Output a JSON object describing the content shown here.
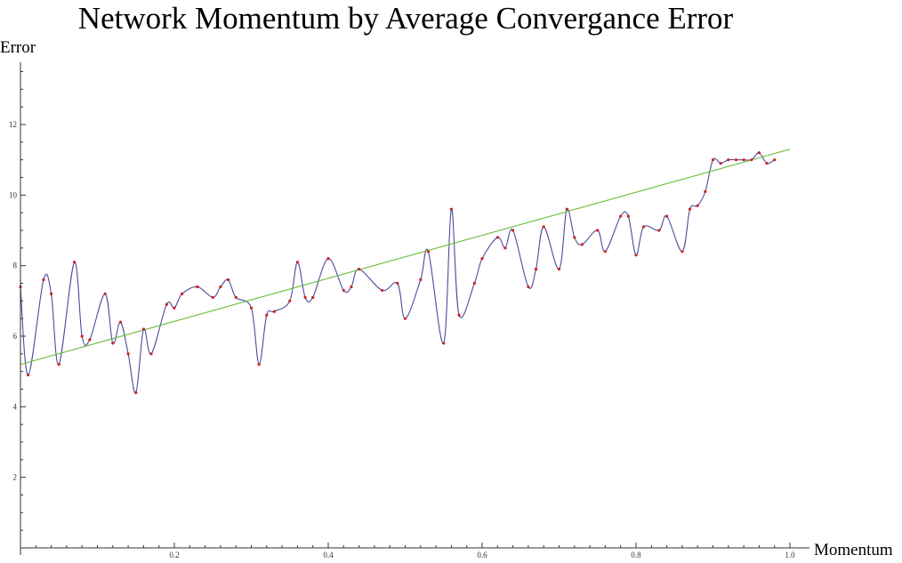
{
  "chart_data": {
    "type": "line",
    "title": "Network Momentum by Average Convergance Error",
    "xlabel": "Momentum",
    "ylabel": "Error",
    "xlim": [
      0,
      1.0
    ],
    "ylim": [
      0,
      14
    ],
    "x_ticks": [
      0.2,
      0.4,
      0.6,
      0.8,
      1.0
    ],
    "x_tick_labels": [
      "0.2",
      "0.4",
      "0.6",
      "0.8",
      "1.0"
    ],
    "y_ticks": [
      2,
      4,
      6,
      8,
      10,
      12
    ],
    "y_tick_labels": [
      "2",
      "4",
      "6",
      "8",
      "10",
      "12"
    ],
    "grid": false,
    "legend": "none",
    "colors": {
      "curve": "#4b4b9e",
      "points": "#cc2222",
      "fit": "#66bb33",
      "axis": "#333333"
    },
    "series": [
      {
        "kind": "points",
        "x": [
          0.0,
          0.01,
          0.03,
          0.04,
          0.05,
          0.07,
          0.08,
          0.09,
          0.11,
          0.12,
          0.13,
          0.14,
          0.15,
          0.16,
          0.17,
          0.19,
          0.2,
          0.21,
          0.23,
          0.25,
          0.26,
          0.27,
          0.28,
          0.3,
          0.31,
          0.32,
          0.33,
          0.35,
          0.36,
          0.37,
          0.38,
          0.4,
          0.42,
          0.43,
          0.44,
          0.47,
          0.49,
          0.5,
          0.52,
          0.53,
          0.55,
          0.56,
          0.57,
          0.59,
          0.6,
          0.62,
          0.63,
          0.64,
          0.66,
          0.67,
          0.68,
          0.7,
          0.71,
          0.72,
          0.73,
          0.75,
          0.76,
          0.78,
          0.79,
          0.8,
          0.81,
          0.83,
          0.84,
          0.86,
          0.87,
          0.88,
          0.89,
          0.9,
          0.91,
          0.92,
          0.93,
          0.94,
          0.95,
          0.96,
          0.97,
          0.98
        ],
        "y": [
          7.4,
          4.9,
          7.6,
          7.2,
          5.2,
          8.1,
          6.0,
          5.9,
          7.2,
          5.8,
          6.4,
          5.5,
          4.4,
          6.2,
          5.5,
          6.9,
          6.8,
          7.2,
          7.4,
          7.1,
          7.4,
          7.6,
          7.1,
          6.8,
          5.2,
          6.6,
          6.7,
          7.0,
          8.1,
          7.1,
          7.1,
          8.2,
          7.3,
          7.4,
          7.9,
          7.3,
          7.5,
          6.5,
          7.6,
          8.4,
          5.8,
          9.6,
          6.6,
          7.5,
          8.2,
          8.8,
          8.5,
          9.0,
          7.4,
          7.9,
          9.1,
          7.9,
          9.6,
          8.8,
          8.6,
          9.0,
          8.4,
          9.4,
          9.4,
          8.3,
          9.1,
          9.0,
          9.4,
          8.4,
          9.6,
          9.7,
          10.1,
          11.0,
          10.9,
          11.0,
          11.0,
          11.0,
          11.0,
          11.2,
          10.9,
          11.0
        ]
      },
      {
        "kind": "fit",
        "x": [
          0.0,
          1.0
        ],
        "y": [
          5.2,
          11.3
        ]
      }
    ]
  }
}
